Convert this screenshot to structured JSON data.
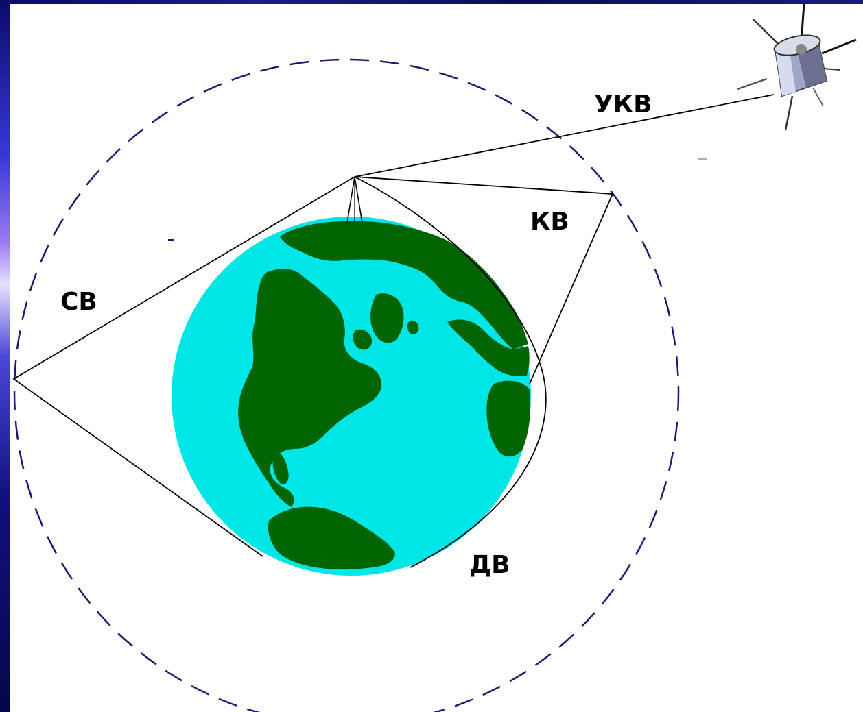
{
  "labels": {
    "ukv": "УКВ",
    "kv": "КВ",
    "sv": "СВ",
    "dv": "ДВ"
  },
  "colors": {
    "ocean": "#00e6e6",
    "land": "#006400",
    "orbit": "#1a1a6e",
    "lines": "#000000",
    "background": "#ffffff"
  },
  "icons": {
    "satellite": "satellite-icon",
    "earth": "earth-globe"
  }
}
